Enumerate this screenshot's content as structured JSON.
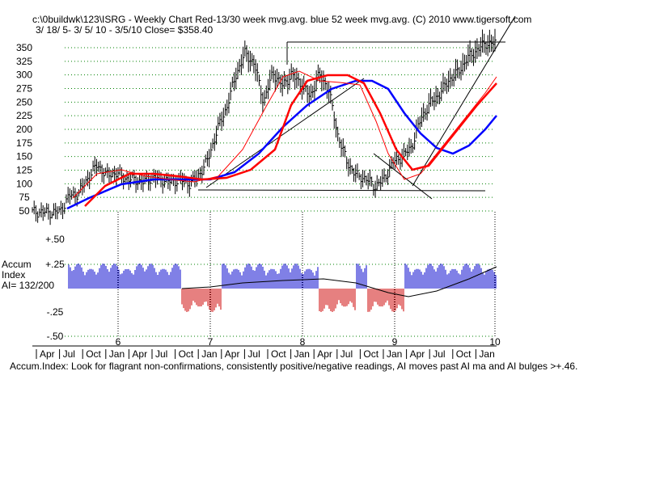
{
  "header": {
    "title": "c:\\0buildwk\\123\\ISRG  - Weekly Chart  Red-13/30 week mvg.avg.  blue 52 week mvg.avg.  (C) 2010 www.tigersoft.com",
    "subtitle": " 3/ 18/ 5- 3/ 5/ 10 - 3/5/10   Close= $358.40"
  },
  "accum_label": {
    "line1": "Accum",
    "line2": "Index",
    "line3": "AI= 132/200"
  },
  "footer": "Accum.Index: Look for flagrant non-confirmations, consistently positive/negative readings, AI moves past AI ma and AI bulges >+.46.",
  "colors": {
    "red_ma": "#ff0000",
    "blue_ma": "#0000ff",
    "grid": "#008000",
    "accum_pos": "#0000cc",
    "accum_neg": "#cc0000",
    "price": "#000000"
  },
  "chart_data": [
    {
      "type": "line",
      "title": "ISRG Weekly",
      "y_ticks": [
        "350",
        "325",
        "300",
        "275",
        "250",
        "225",
        "200",
        "175",
        "150",
        "125",
        "100",
        "75",
        "50"
      ],
      "ylim": [
        50,
        350
      ],
      "year_labels": [
        "6",
        "7",
        "8",
        "9",
        "10"
      ],
      "month_labels": [
        "Apr",
        "Jul",
        "Oct",
        "Jan",
        "Apr",
        "Jul",
        "Oct",
        "Jan",
        "Apr",
        "Jul",
        "Oct",
        "Jan",
        "Apr",
        "Jul",
        "Oct",
        "Jan",
        "Apr",
        "Jul",
        "Oct",
        "Jan"
      ],
      "x": [
        2005.2,
        2005.3,
        2005.4,
        2005.5,
        2005.6,
        2005.7,
        2005.8,
        2005.9,
        2006.0,
        2006.1,
        2006.2,
        2006.3,
        2006.4,
        2006.5,
        2006.6,
        2006.7,
        2006.8,
        2006.9,
        2007.0,
        2007.1,
        2007.2,
        2007.3,
        2007.4,
        2007.5,
        2007.6,
        2007.7,
        2007.8,
        2007.9,
        2008.0,
        2008.1,
        2008.2,
        2008.3,
        2008.4,
        2008.5,
        2008.6,
        2008.7,
        2008.8,
        2008.9,
        2009.0,
        2009.1,
        2009.2,
        2009.3,
        2009.4,
        2009.5,
        2009.6,
        2009.7,
        2009.8,
        2009.9,
        2010.0,
        2010.1,
        2010.2
      ],
      "series": [
        {
          "name": "Close",
          "values": [
            48,
            48,
            47,
            49,
            78,
            82,
            110,
            135,
            115,
            120,
            110,
            107,
            103,
            112,
            108,
            103,
            108,
            100,
            116,
            145,
            200,
            240,
            300,
            340,
            320,
            250,
            305,
            280,
            300,
            285,
            260,
            300,
            275,
            190,
            140,
            115,
            110,
            95,
            108,
            140,
            150,
            168,
            220,
            248,
            265,
            290,
            305,
            330,
            345,
            358,
            358
          ]
        },
        {
          "name": "13 wk mvg.avg.",
          "values": [
            null,
            null,
            null,
            null,
            58,
            70,
            88,
            108,
            122,
            122,
            115,
            110,
            108,
            106,
            106,
            105,
            106,
            104,
            108,
            122,
            150,
            190,
            240,
            290,
            310,
            296,
            292,
            292,
            295,
            290,
            285,
            285,
            288,
            260,
            200,
            150,
            125,
            108,
            100,
            112,
            130,
            150,
            175,
            205,
            235,
            262,
            285,
            305,
            322,
            338,
            350
          ]
        },
        {
          "name": "30 wk mvg.avg.",
          "values": [
            null,
            null,
            null,
            null,
            null,
            null,
            null,
            60,
            70,
            85,
            100,
            110,
            112,
            110,
            108,
            108,
            107,
            106,
            107,
            112,
            122,
            140,
            170,
            210,
            250,
            275,
            290,
            298,
            300,
            297,
            292,
            290,
            290,
            285,
            250,
            200,
            160,
            130,
            110,
            105,
            110,
            125,
            145,
            165,
            185,
            205,
            225,
            245,
            260,
            275,
            283
          ]
        },
        {
          "name": "52 wk mvg.avg.",
          "values": [
            null,
            null,
            null,
            null,
            null,
            null,
            null,
            null,
            null,
            null,
            null,
            null,
            null,
            null,
            null,
            null,
            null,
            null,
            null,
            null,
            null,
            null,
            null,
            null,
            null,
            null,
            null,
            null,
            null,
            null,
            null,
            null,
            null,
            null,
            null,
            null,
            null,
            null,
            null,
            null,
            null,
            null,
            null,
            null,
            null,
            null,
            null,
            null,
            null,
            null,
            null
          ]
        }
      ]
    },
    {
      "type": "bar",
      "title": "Accum Index",
      "y_ticks": [
        "+.50",
        "+.25",
        "-.25",
        "-.50"
      ],
      "ylim": [
        -0.5,
        0.5
      ]
    }
  ]
}
